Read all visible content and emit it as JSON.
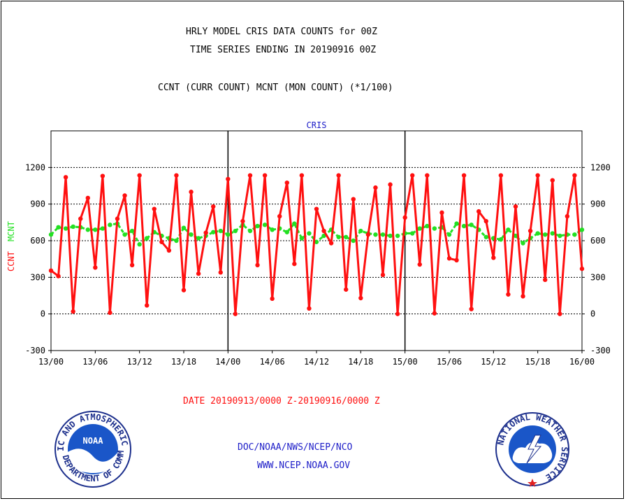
{
  "header": {
    "title_line1": "HRLY MODEL CRIS DATA COUNTS for 00Z",
    "title_line2": "TIME SERIES ENDING IN 20190916 00Z",
    "subtitle": "CCNT (CURR COUNT) MCNT (MON COUNT) (*1/100)"
  },
  "footer": {
    "date_range": "DATE 20190913/0000 Z-20190916/0000 Z",
    "org": "DOC/NOAA/NWS/NCEP/NCO",
    "url": "WWW.NCEP.NOAA.GOV"
  },
  "logos": {
    "noaa_text": "NOAA",
    "noaa_ring_top": "NATIONAL OCEANIC AND ATMOSPHERIC ADMINISTRATION",
    "noaa_ring_bottom": "U.S. DEPARTMENT OF COMMERCE",
    "nws_ring": "NATIONAL WEATHER SERVICE"
  },
  "colors": {
    "ccnt": "#ff1010",
    "mcnt": "#22e022",
    "label_blue": "#1c1cc8"
  },
  "chart_data": {
    "type": "line",
    "title": "CRIS",
    "ylabel_ccnt": "CCNT",
    "ylabel_mcnt": "MCNT",
    "ylim": [
      -300,
      1500
    ],
    "yticks": [
      -300,
      0,
      300,
      600,
      900,
      1200
    ],
    "xlim": [
      0,
      72
    ],
    "xticks": [
      0,
      6,
      12,
      18,
      24,
      30,
      36,
      42,
      48,
      54,
      60,
      66,
      72
    ],
    "xtick_labels": [
      "13/00",
      "13/06",
      "13/12",
      "13/18",
      "14/00",
      "14/06",
      "14/12",
      "14/18",
      "15/00",
      "15/06",
      "15/12",
      "15/18",
      "16/00"
    ],
    "day_dividers": [
      24,
      48
    ],
    "grid": "horizontal-dashed",
    "series": [
      {
        "name": "CCNT",
        "x": [
          0,
          1,
          2,
          3,
          4,
          5,
          6,
          7,
          8,
          9,
          10,
          11,
          12,
          13,
          14,
          15,
          16,
          17,
          18,
          19,
          20,
          21,
          22,
          23,
          24,
          25,
          26,
          27,
          28,
          29,
          30,
          31,
          32,
          33,
          34,
          35,
          36,
          37,
          38,
          39,
          40,
          41,
          42,
          43,
          44,
          45,
          46,
          47,
          48,
          49,
          50,
          51,
          52,
          53,
          54,
          55,
          56,
          57,
          58,
          59,
          60,
          61,
          62,
          63,
          64,
          65,
          66,
          67,
          68,
          69,
          70,
          71,
          72
        ],
        "values": [
          355,
          310,
          1120,
          20,
          780,
          950,
          380,
          1130,
          10,
          780,
          970,
          400,
          1135,
          70,
          860,
          590,
          520,
          1135,
          195,
          1000,
          330,
          665,
          880,
          340,
          1105,
          0,
          760,
          1135,
          400,
          1135,
          125,
          800,
          1075,
          410,
          1135,
          45,
          860,
          680,
          580,
          1135,
          200,
          940,
          130,
          650,
          1035,
          320,
          1060,
          0,
          790,
          1135,
          405,
          1135,
          5,
          830,
          455,
          440,
          1135,
          40,
          840,
          760,
          460,
          1135,
          160,
          880,
          145,
          680,
          1135,
          280,
          1095,
          0,
          800,
          1135,
          370
        ]
      },
      {
        "name": "MCNT",
        "x": [
          0,
          1,
          2,
          3,
          4,
          5,
          6,
          7,
          8,
          9,
          10,
          11,
          12,
          13,
          14,
          15,
          16,
          17,
          18,
          19,
          20,
          21,
          22,
          23,
          24,
          25,
          26,
          27,
          28,
          29,
          30,
          31,
          32,
          33,
          34,
          35,
          36,
          37,
          38,
          39,
          40,
          41,
          42,
          43,
          44,
          45,
          46,
          47,
          48,
          49,
          50,
          51,
          52,
          53,
          54,
          55,
          56,
          57,
          58,
          59,
          60,
          61,
          62,
          63,
          64,
          65,
          66,
          67,
          68,
          69,
          70,
          71,
          72
        ],
        "values": [
          650,
          710,
          700,
          715,
          710,
          690,
          690,
          700,
          730,
          740,
          650,
          680,
          570,
          620,
          670,
          640,
          620,
          600,
          705,
          650,
          620,
          640,
          670,
          680,
          650,
          680,
          730,
          680,
          720,
          730,
          690,
          700,
          670,
          740,
          620,
          660,
          590,
          640,
          690,
          630,
          630,
          600,
          680,
          660,
          650,
          650,
          640,
          640,
          660,
          660,
          700,
          720,
          700,
          710,
          650,
          740,
          720,
          730,
          690,
          630,
          620,
          610,
          690,
          640,
          580,
          620,
          660,
          650,
          660,
          640,
          650,
          650,
          690
        ]
      }
    ]
  }
}
